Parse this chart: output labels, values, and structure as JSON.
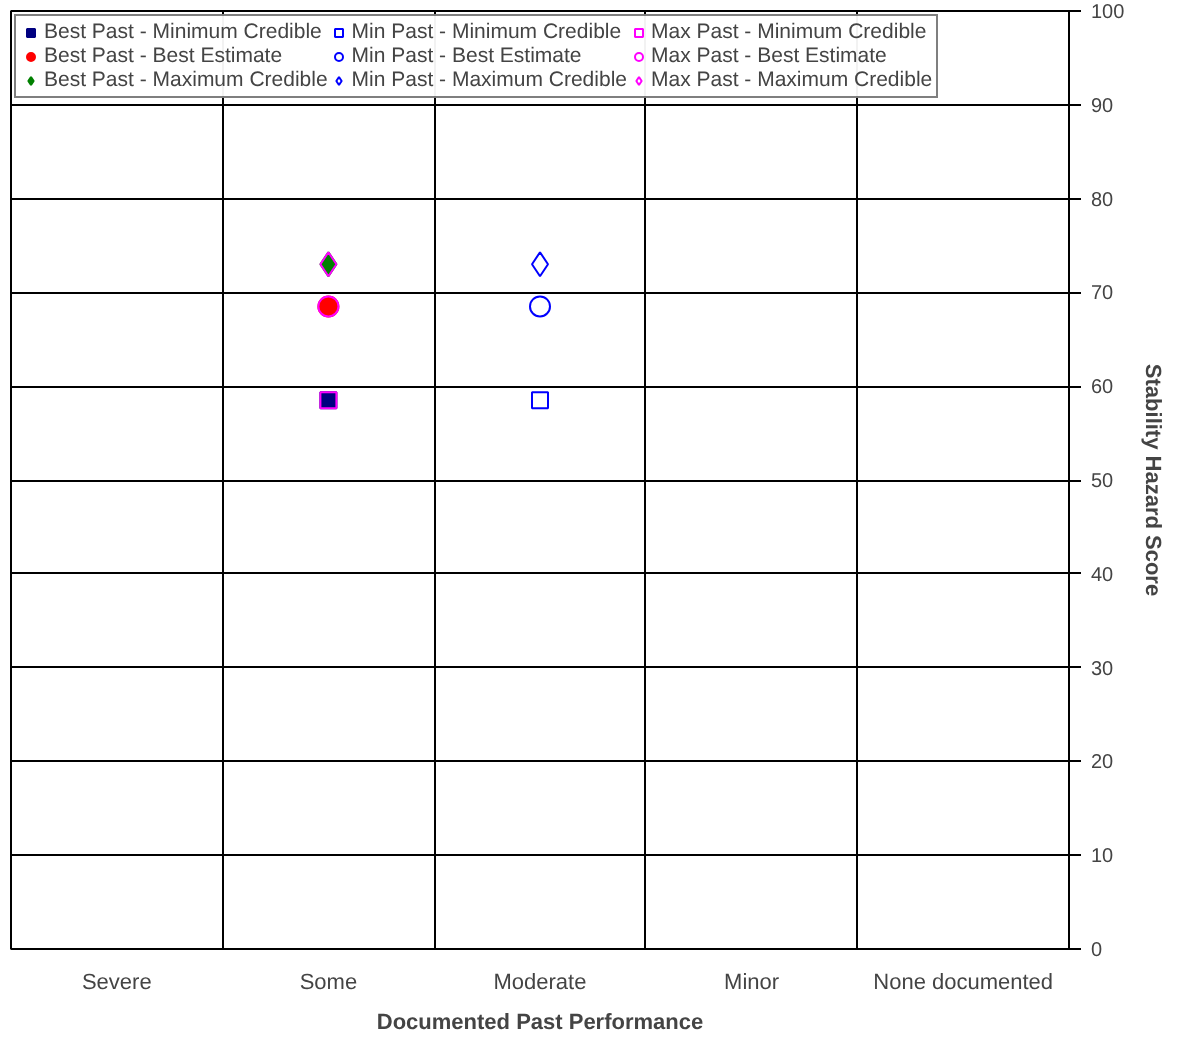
{
  "chart_data": {
    "type": "scatter",
    "xlabel": "Documented Past Performance",
    "ylabel": "Stability Hazard Score",
    "categories": [
      "Severe",
      "Some",
      "Moderate",
      "Minor",
      "None documented"
    ],
    "ylim": [
      0,
      100
    ],
    "yticks": [
      0,
      10,
      20,
      30,
      40,
      50,
      60,
      70,
      80,
      90,
      100
    ],
    "grid": true,
    "legend": "top",
    "series": [
      {
        "name": "Best Past - Minimum Credible",
        "color": "#000080",
        "marker": "square",
        "values": [
          null,
          58.5,
          null,
          null,
          null
        ]
      },
      {
        "name": "Best Past - Best Estimate",
        "color": "#ff0000",
        "marker": "circle",
        "values": [
          null,
          68.5,
          null,
          null,
          null
        ]
      },
      {
        "name": "Best Past - Maximum Credible",
        "color": "#008000",
        "marker": "diamond",
        "values": [
          null,
          73,
          null,
          null,
          null
        ]
      },
      {
        "name": "Min Past - Minimum Credible",
        "color": "#0000ff",
        "marker": "square-open",
        "values": [
          null,
          null,
          58.5,
          null,
          null
        ]
      },
      {
        "name": "Min Past - Best Estimate",
        "color": "#0000ff",
        "marker": "circle-open",
        "values": [
          null,
          null,
          68.5,
          null,
          null
        ]
      },
      {
        "name": "Min Past - Maximum Credible",
        "color": "#0000ff",
        "marker": "diamond-open",
        "values": [
          null,
          null,
          73,
          null,
          null
        ]
      },
      {
        "name": "Max Past - Minimum Credible",
        "color": "#ff00ff",
        "marker": "square-open",
        "values": [
          null,
          58.5,
          null,
          null,
          null
        ]
      },
      {
        "name": "Max Past - Best Estimate",
        "color": "#ff00ff",
        "marker": "circle-open",
        "values": [
          null,
          68.5,
          null,
          null,
          null
        ]
      },
      {
        "name": "Max Past - Maximum Credible",
        "color": "#ff00ff",
        "marker": "diamond-open",
        "values": [
          null,
          73,
          null,
          null,
          null
        ]
      }
    ]
  }
}
